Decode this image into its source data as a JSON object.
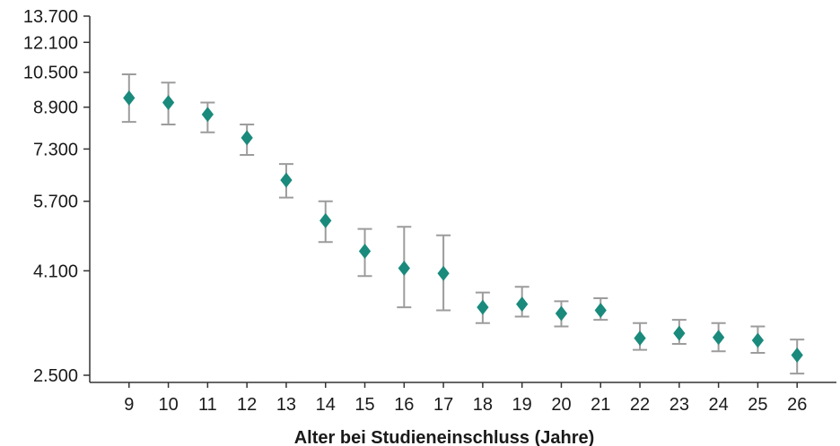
{
  "chart_data": {
    "type": "scatter",
    "title": "",
    "xlabel": "Alter bei Studieneinschluss (Jahre)",
    "ylabel": "",
    "y_scale": "log",
    "ylim": [
      2500,
      13700
    ],
    "xlim": [
      8,
      27
    ],
    "x_ticks": [
      "9",
      "10",
      "11",
      "12",
      "13",
      "14",
      "15",
      "16",
      "17",
      "18",
      "19",
      "20",
      "21",
      "22",
      "23",
      "24",
      "25",
      "26"
    ],
    "y_ticks": [
      {
        "value": 2500,
        "label": "2.500"
      },
      {
        "value": 4100,
        "label": "4.100"
      },
      {
        "value": 5700,
        "label": "5.700"
      },
      {
        "value": 7300,
        "label": "7.300"
      },
      {
        "value": 8900,
        "label": "8.900"
      },
      {
        "value": 10500,
        "label": "10.500"
      },
      {
        "value": 12100,
        "label": "12.100"
      },
      {
        "value": 13700,
        "label": "13.700"
      }
    ],
    "grid": false,
    "marker_color": "#1a8a7c",
    "error_bar_color": "#9c9c9c",
    "points": [
      {
        "x": 9,
        "y": 9300,
        "low": 8300,
        "high": 10400
      },
      {
        "x": 10,
        "y": 9100,
        "low": 8200,
        "high": 10000
      },
      {
        "x": 11,
        "y": 8600,
        "low": 7900,
        "high": 9100
      },
      {
        "x": 12,
        "y": 7700,
        "low": 7100,
        "high": 8200
      },
      {
        "x": 13,
        "y": 6300,
        "low": 5800,
        "high": 6800
      },
      {
        "x": 14,
        "y": 5200,
        "low": 4700,
        "high": 5700
      },
      {
        "x": 15,
        "y": 4500,
        "low": 4000,
        "high": 5000
      },
      {
        "x": 16,
        "y": 4150,
        "low": 3450,
        "high": 5050
      },
      {
        "x": 17,
        "y": 4050,
        "low": 3400,
        "high": 4850
      },
      {
        "x": 18,
        "y": 3450,
        "low": 3200,
        "high": 3700
      },
      {
        "x": 19,
        "y": 3500,
        "low": 3300,
        "high": 3800
      },
      {
        "x": 20,
        "y": 3350,
        "low": 3150,
        "high": 3550
      },
      {
        "x": 21,
        "y": 3400,
        "low": 3250,
        "high": 3600
      },
      {
        "x": 22,
        "y": 2980,
        "low": 2820,
        "high": 3200
      },
      {
        "x": 23,
        "y": 3050,
        "low": 2900,
        "high": 3250
      },
      {
        "x": 24,
        "y": 2990,
        "low": 2800,
        "high": 3200
      },
      {
        "x": 25,
        "y": 2950,
        "low": 2780,
        "high": 3150
      },
      {
        "x": 26,
        "y": 2750,
        "low": 2520,
        "high": 2960
      }
    ]
  }
}
